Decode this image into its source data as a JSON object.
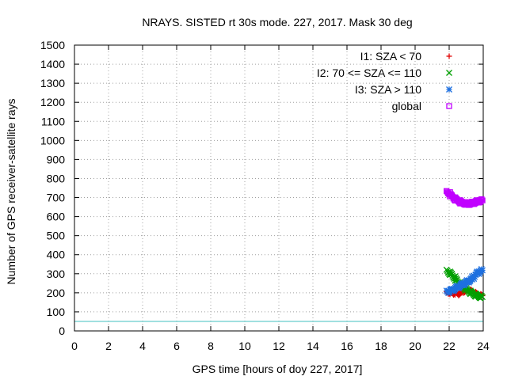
{
  "chart_data": {
    "type": "scatter",
    "title": "NRAYS. SISTED rt 30s mode. 227, 2017. Mask 30 deg",
    "xlabel": "GPS time [hours of doy 227, 2017]",
    "ylabel": "Number of GPS receiver-satellite rays",
    "xlim": [
      0,
      24
    ],
    "ylim": [
      0,
      1500
    ],
    "xticks": [
      0,
      2,
      4,
      6,
      8,
      10,
      12,
      14,
      16,
      18,
      20,
      22,
      24
    ],
    "yticks": [
      0,
      100,
      200,
      300,
      400,
      500,
      600,
      700,
      800,
      900,
      1000,
      1100,
      1200,
      1300,
      1400,
      1500
    ],
    "grid": true,
    "legend_position": "top-right",
    "reference_line": {
      "y": 50,
      "color": "#40c0c0"
    },
    "series": [
      {
        "name": "I1: SZA < 70",
        "marker": "plus",
        "color": "#e00000",
        "x": [
          21.9,
          22.0,
          22.1,
          22.2,
          22.3,
          22.4,
          22.5,
          22.6,
          22.7,
          22.8,
          22.9,
          23.0,
          23.1,
          23.2,
          23.3,
          23.4,
          23.5,
          23.6,
          23.7,
          23.8,
          23.9
        ],
        "y": [
          200,
          205,
          198,
          195,
          200,
          196,
          192,
          196,
          200,
          205,
          208,
          212,
          215,
          212,
          210,
          205,
          200,
          195,
          192,
          188,
          185
        ]
      },
      {
        "name": "I2: 70 <= SZA <= 110",
        "marker": "cross",
        "color": "#00a000",
        "x": [
          21.9,
          22.0,
          22.1,
          22.2,
          22.3,
          22.4,
          22.5,
          22.6,
          22.7,
          22.8,
          22.9,
          23.0,
          23.1,
          23.2,
          23.3,
          23.4,
          23.5,
          23.6,
          23.7,
          23.8,
          23.9
        ],
        "y": [
          315,
          305,
          300,
          290,
          280,
          270,
          260,
          250,
          240,
          232,
          225,
          218,
          212,
          205,
          200,
          195,
          190,
          186,
          183,
          180,
          178
        ]
      },
      {
        "name": "I3: SZA > 110",
        "marker": "star",
        "color": "#1e70e0",
        "x": [
          21.9,
          22.0,
          22.1,
          22.2,
          22.3,
          22.4,
          22.5,
          22.6,
          22.7,
          22.8,
          22.9,
          23.0,
          23.1,
          23.2,
          23.3,
          23.4,
          23.5,
          23.6,
          23.7,
          23.8,
          23.9
        ],
        "y": [
          205,
          210,
          212,
          215,
          220,
          225,
          230,
          235,
          240,
          245,
          250,
          255,
          260,
          265,
          270,
          280,
          290,
          300,
          305,
          312,
          318
        ]
      },
      {
        "name": "global",
        "marker": "square",
        "color": "#c000ff",
        "x": [
          21.9,
          22.0,
          22.1,
          22.2,
          22.3,
          22.4,
          22.5,
          22.6,
          22.7,
          22.8,
          22.9,
          23.0,
          23.1,
          23.2,
          23.3,
          23.4,
          23.5,
          23.6,
          23.7,
          23.8,
          23.9
        ],
        "y": [
          728,
          722,
          712,
          705,
          695,
          690,
          685,
          680,
          675,
          672,
          670,
          668,
          667,
          668,
          670,
          672,
          675,
          678,
          680,
          682,
          685
        ]
      }
    ]
  }
}
